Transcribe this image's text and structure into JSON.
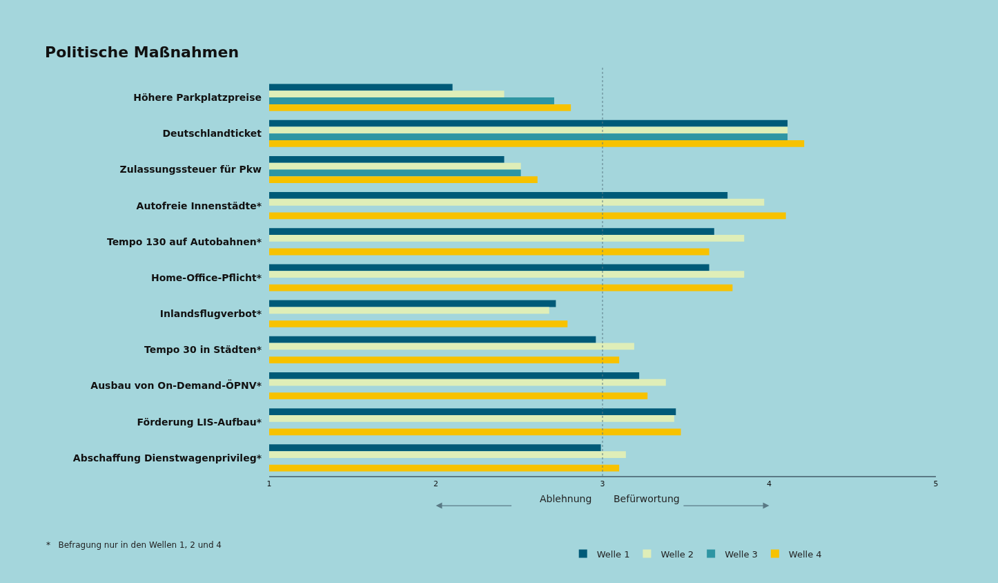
{
  "chart_data": {
    "type": "bar",
    "orientation": "horizontal",
    "title": "Politische Maßnahmen",
    "categories": [
      "Höhere Parkplatzpreise",
      "Deutschlandticket",
      "Zulassungssteuer für Pkw",
      "Autofreie Innenstädte*",
      "Tempo 130 auf Autobahnen*",
      "Home-Office-Pflicht*",
      "Inlandsflugverbot*",
      "Tempo 30 in Städten*",
      "Ausbau von On-Demand-ÖPNV*",
      "Förderung LIS-Aufbau*",
      "Abschaffung Dienstwagenprivileg*"
    ],
    "series": [
      {
        "name": "Welle 1",
        "color": "#005a78",
        "values": [
          2.1,
          4.11,
          2.41,
          3.75,
          3.67,
          3.64,
          2.72,
          2.96,
          3.22,
          3.44,
          2.99
        ]
      },
      {
        "name": "Welle 2",
        "color": "#dfeeb8",
        "values": [
          2.41,
          4.11,
          2.51,
          3.97,
          3.85,
          3.85,
          2.68,
          3.19,
          3.38,
          3.43,
          3.14
        ]
      },
      {
        "name": "Welle 3",
        "color": "#2e95a3",
        "values": [
          2.71,
          4.11,
          2.51,
          null,
          null,
          null,
          null,
          null,
          null,
          null,
          null
        ]
      },
      {
        "name": "Welle 4",
        "color": "#f7c200",
        "values": [
          2.81,
          4.21,
          2.61,
          4.1,
          3.64,
          3.78,
          2.79,
          3.1,
          3.27,
          3.47,
          3.1
        ]
      }
    ],
    "xlim": [
      1,
      5
    ],
    "xticks": [
      1,
      2,
      3,
      4,
      5
    ],
    "ref_lines": [
      {
        "axis": "x",
        "value": 3,
        "line_style": "dotted",
        "color": "#5a7a85"
      }
    ],
    "annotations": [
      "Ablehnung",
      "Befürwortung",
      "*   Befragung nur in den Wellen 1, 2 und 4"
    ],
    "grid": false,
    "legend": "bottom"
  }
}
